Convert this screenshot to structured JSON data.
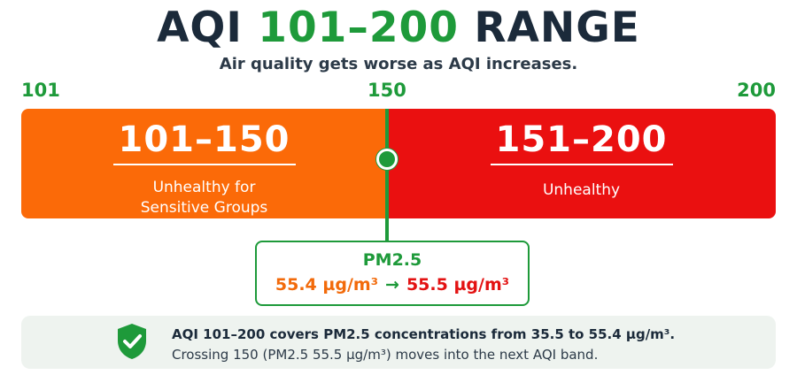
{
  "header": {
    "title_prefix": "AQI ",
    "title_accent": "101–200",
    "title_suffix": " RANGE",
    "subtitle": "Air quality gets worse as AQI increases."
  },
  "scale": {
    "ticks": [
      "101",
      "150",
      "200"
    ]
  },
  "bands": [
    {
      "range": "101–150",
      "label_line1": "Unhealthy for",
      "label_line2": "Sensitive Groups",
      "color": "#fb6a08"
    },
    {
      "range": "151–200",
      "label": "Unhealthy",
      "color": "#ea1010"
    }
  ],
  "pm_box": {
    "title": "PM2.5",
    "from": "55.4 µg/m³",
    "arrow": "→",
    "to": "55.5 µg/m³"
  },
  "note": {
    "icon": "shield-check-icon",
    "line1": "AQI 101–200 covers PM2.5 concentrations from 35.5 to 55.4 µg/m³.",
    "line2": "Crossing 150 (PM2.5 55.5 µg/m³) moves into the next AQI band."
  },
  "colors": {
    "accent_green": "#1e9a3a",
    "orange": "#fb6a08",
    "red": "#ea1010",
    "text_dark": "#1b2a3a"
  }
}
